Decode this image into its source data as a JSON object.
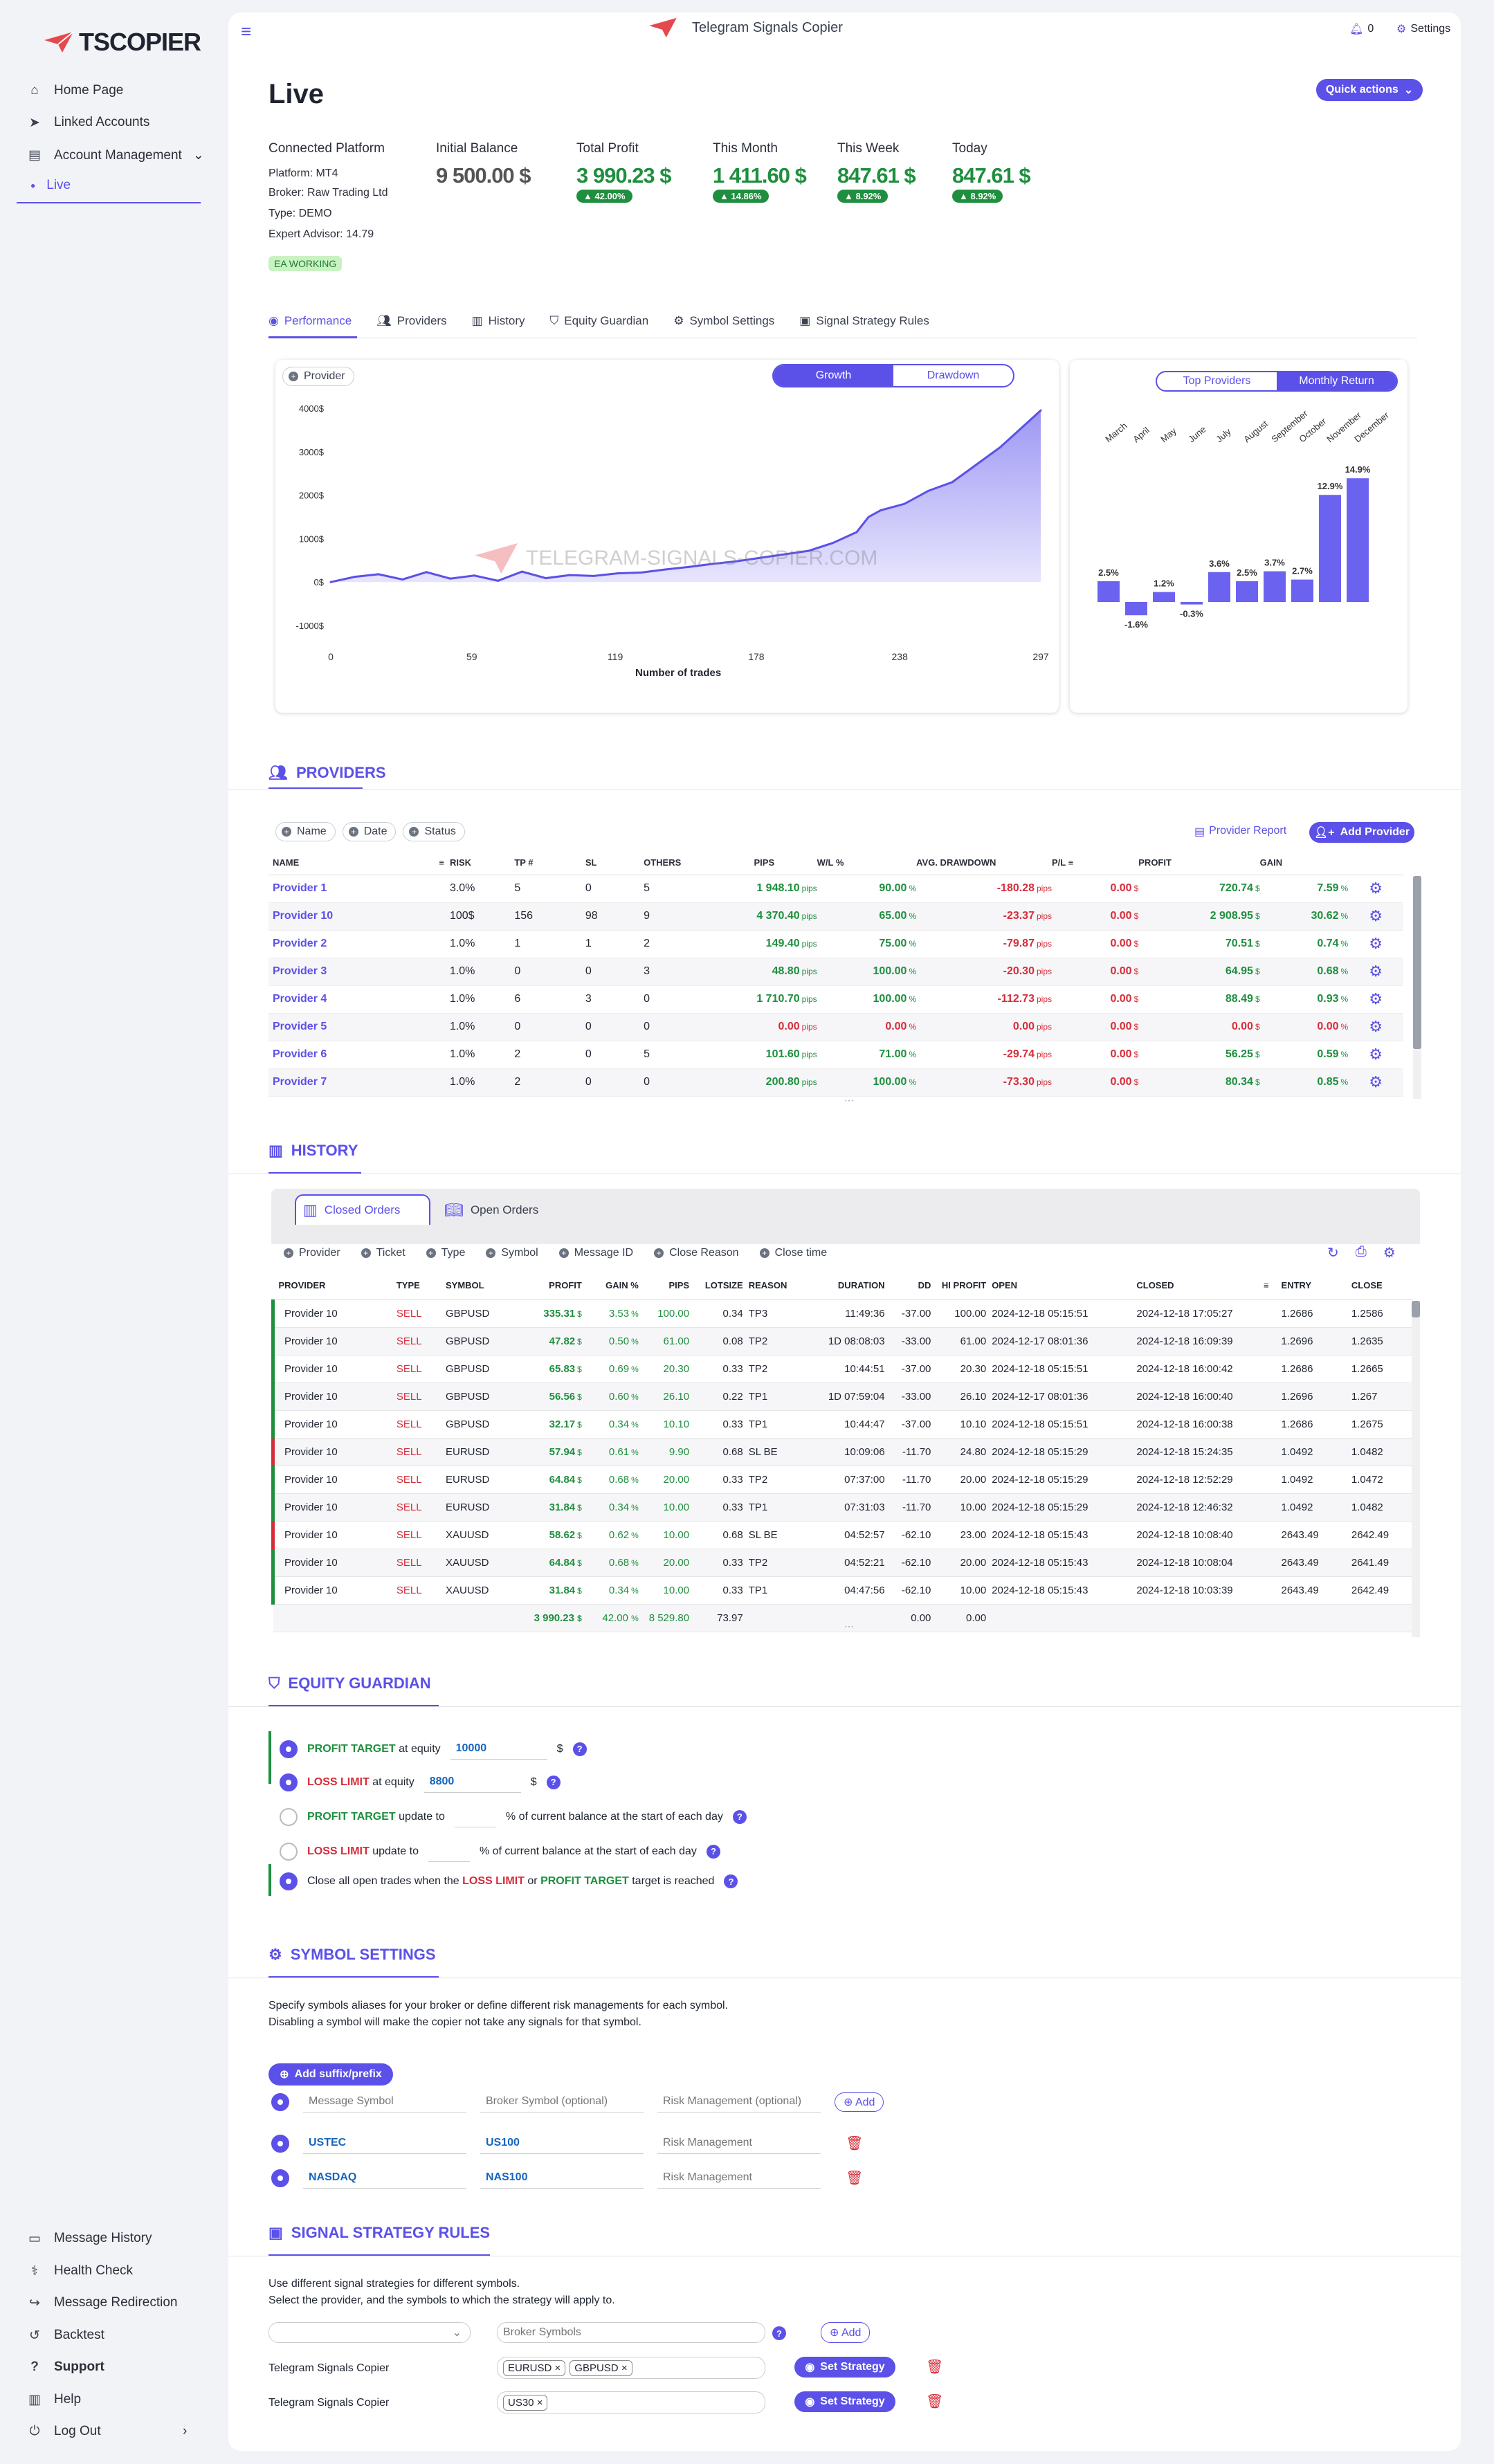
{
  "brand": {
    "logo_text": "TSCOPIER"
  },
  "sidebar": {
    "items": [
      {
        "label": "Home Page"
      },
      {
        "label": "Linked Accounts"
      },
      {
        "label": "Account Management"
      },
      {
        "label": "Live"
      }
    ],
    "bottom": [
      {
        "label": "Message History"
      },
      {
        "label": "Health Check"
      },
      {
        "label": "Message Redirection"
      },
      {
        "label": "Backtest"
      },
      {
        "label": "Support"
      },
      {
        "label": "Help"
      },
      {
        "label": "Log Out"
      }
    ]
  },
  "header": {
    "app_title": "Telegram Signals Copier",
    "notif_count": "0",
    "settings": "Settings"
  },
  "page": {
    "title": "Live",
    "quick_actions": "Quick actions"
  },
  "account": {
    "connected_label": "Connected Platform",
    "platform": "Platform:  MT4",
    "broker": "Broker:  Raw Trading Ltd",
    "type": "Type:  DEMO",
    "ea": "Expert Advisor:  14.79",
    "ea_status": "EA WORKING"
  },
  "stats": [
    {
      "label": "Initial Balance",
      "value": "9 500.00 $",
      "pct": ""
    },
    {
      "label": "Total Profit",
      "value": "3 990.23 $",
      "pct": "42.00%"
    },
    {
      "label": "This Month",
      "value": "1 411.60 $",
      "pct": "14.86%"
    },
    {
      "label": "This Week",
      "value": "847.61 $",
      "pct": "8.92%"
    },
    {
      "label": "Today",
      "value": "847.61 $",
      "pct": "8.92%"
    }
  ],
  "tabs": [
    "Performance",
    "Providers",
    "History",
    "Equity Guardian",
    "Symbol Settings",
    "Signal Strategy Rules"
  ],
  "growth_chart": {
    "provider_chip": "Provider",
    "toggle_growth": "Growth",
    "toggle_drawdown": "Drawdown",
    "watermark": "TELEGRAM-SIGNALS-COPIER.COM",
    "xlabel": "Number of trades",
    "yticks": [
      "4000$",
      "3000$",
      "2000$",
      "1000$",
      "0$",
      "-1000$"
    ],
    "xticks": [
      "0",
      "59",
      "119",
      "178",
      "238",
      "297"
    ]
  },
  "chart_data": [
    {
      "type": "area",
      "title": "",
      "xlabel": "Number of trades",
      "ylabel": "",
      "ylim": [
        -1000,
        4000
      ],
      "xlim": [
        0,
        297
      ],
      "x": [
        0,
        10,
        20,
        30,
        40,
        50,
        60,
        70,
        80,
        90,
        100,
        110,
        120,
        130,
        140,
        150,
        160,
        170,
        180,
        190,
        200,
        210,
        220,
        225,
        230,
        240,
        250,
        260,
        270,
        280,
        290,
        297
      ],
      "y": [
        0,
        120,
        180,
        60,
        230,
        80,
        150,
        30,
        240,
        90,
        160,
        140,
        200,
        220,
        290,
        350,
        420,
        480,
        560,
        640,
        720,
        900,
        1150,
        1500,
        1650,
        1800,
        2100,
        2300,
        2700,
        3100,
        3600,
        3950
      ]
    },
    {
      "type": "bar",
      "title": "",
      "toggle_top": "Top Providers",
      "toggle_monthly": "Monthly Return",
      "categories": [
        "March",
        "April",
        "May",
        "June",
        "July",
        "August",
        "September",
        "October",
        "November",
        "December"
      ],
      "values": [
        2.5,
        -1.6,
        1.2,
        -0.3,
        3.6,
        2.5,
        3.7,
        2.7,
        12.9,
        14.9
      ],
      "labels": [
        "2.5%",
        "-1.6%",
        "1.2%",
        "-0.3%",
        "3.6%",
        "2.5%",
        "3.7%",
        "2.7%",
        "12.9%",
        "14.9%"
      ]
    }
  ],
  "providers": {
    "title": "PROVIDERS",
    "filters": [
      "Name",
      "Date",
      "Status"
    ],
    "report": "Provider Report",
    "add": "Add Provider",
    "columns": [
      "NAME",
      "RISK",
      "TP #",
      "SL",
      "OTHERS",
      "PIPS",
      "W/L %",
      "AVG. DRAWDOWN",
      "P/L",
      "PROFIT",
      "GAIN"
    ],
    "rows": [
      [
        "Provider 1",
        "3.0%",
        "5",
        "0",
        "5",
        "1 948.10",
        "90.00",
        "-180.28",
        "0.00",
        "720.74",
        "7.59"
      ],
      [
        "Provider 10",
        "100$",
        "156",
        "98",
        "9",
        "4 370.40",
        "65.00",
        "-23.37",
        "0.00",
        "2 908.95",
        "30.62"
      ],
      [
        "Provider 2",
        "1.0%",
        "1",
        "1",
        "2",
        "149.40",
        "75.00",
        "-79.87",
        "0.00",
        "70.51",
        "0.74"
      ],
      [
        "Provider 3",
        "1.0%",
        "0",
        "0",
        "3",
        "48.80",
        "100.00",
        "-20.30",
        "0.00",
        "64.95",
        "0.68"
      ],
      [
        "Provider 4",
        "1.0%",
        "6",
        "3",
        "0",
        "1 710.70",
        "100.00",
        "-112.73",
        "0.00",
        "88.49",
        "0.93"
      ],
      [
        "Provider 5",
        "1.0%",
        "0",
        "0",
        "0",
        "0.00",
        "0.00",
        "0.00",
        "0.00",
        "0.00",
        "0.00"
      ],
      [
        "Provider 6",
        "1.0%",
        "2",
        "0",
        "5",
        "101.60",
        "71.00",
        "-29.74",
        "0.00",
        "56.25",
        "0.59"
      ],
      [
        "Provider 7",
        "1.0%",
        "2",
        "0",
        "0",
        "200.80",
        "100.00",
        "-73.30",
        "0.00",
        "80.34",
        "0.85"
      ]
    ]
  },
  "history": {
    "title": "HISTORY",
    "tab_closed": "Closed Orders",
    "tab_open": "Open Orders",
    "filters": [
      "Provider",
      "Ticket",
      "Type",
      "Symbol",
      "Message ID",
      "Close Reason",
      "Close time"
    ],
    "columns": [
      "PROVIDER",
      "TYPE",
      "SYMBOL",
      "PROFIT",
      "GAIN %",
      "PIPS",
      "LOTSIZE",
      "REASON",
      "DURATION",
      "DD",
      "HI PROFIT",
      "OPEN",
      "CLOSED",
      "ENTRY",
      "CLOSE"
    ],
    "rows": [
      [
        "Provider 10",
        "SELL",
        "GBPUSD",
        "335.31",
        "3.53",
        "100.00",
        "0.34",
        "TP3",
        "11:49:36",
        "-37.00",
        "100.00",
        "2024-12-18 05:15:51",
        "2024-12-18 17:05:27",
        "1.2686",
        "1.2586",
        "g"
      ],
      [
        "Provider 10",
        "SELL",
        "GBPUSD",
        "47.82",
        "0.50",
        "61.00",
        "0.08",
        "TP2",
        "1D 08:08:03",
        "-33.00",
        "61.00",
        "2024-12-17 08:01:36",
        "2024-12-18 16:09:39",
        "1.2696",
        "1.2635",
        "g"
      ],
      [
        "Provider 10",
        "SELL",
        "GBPUSD",
        "65.83",
        "0.69",
        "20.30",
        "0.33",
        "TP2",
        "10:44:51",
        "-37.00",
        "20.30",
        "2024-12-18 05:15:51",
        "2024-12-18 16:00:42",
        "1.2686",
        "1.2665",
        "g"
      ],
      [
        "Provider 10",
        "SELL",
        "GBPUSD",
        "56.56",
        "0.60",
        "26.10",
        "0.22",
        "TP1",
        "1D 07:59:04",
        "-33.00",
        "26.10",
        "2024-12-17 08:01:36",
        "2024-12-18 16:00:40",
        "1.2696",
        "1.267",
        "g"
      ],
      [
        "Provider 10",
        "SELL",
        "GBPUSD",
        "32.17",
        "0.34",
        "10.10",
        "0.33",
        "TP1",
        "10:44:47",
        "-37.00",
        "10.10",
        "2024-12-18 05:15:51",
        "2024-12-18 16:00:38",
        "1.2686",
        "1.2675",
        "g"
      ],
      [
        "Provider 10",
        "SELL",
        "EURUSD",
        "57.94",
        "0.61",
        "9.90",
        "0.68",
        "SL BE",
        "10:09:06",
        "-11.70",
        "24.80",
        "2024-12-18 05:15:29",
        "2024-12-18 15:24:35",
        "1.0492",
        "1.0482",
        "r"
      ],
      [
        "Provider 10",
        "SELL",
        "EURUSD",
        "64.84",
        "0.68",
        "20.00",
        "0.33",
        "TP2",
        "07:37:00",
        "-11.70",
        "20.00",
        "2024-12-18 05:15:29",
        "2024-12-18 12:52:29",
        "1.0492",
        "1.0472",
        "g"
      ],
      [
        "Provider 10",
        "SELL",
        "EURUSD",
        "31.84",
        "0.34",
        "10.00",
        "0.33",
        "TP1",
        "07:31:03",
        "-11.70",
        "10.00",
        "2024-12-18 05:15:29",
        "2024-12-18 12:46:32",
        "1.0492",
        "1.0482",
        "g"
      ],
      [
        "Provider 10",
        "SELL",
        "XAUUSD",
        "58.62",
        "0.62",
        "10.00",
        "0.68",
        "SL BE",
        "04:52:57",
        "-62.10",
        "23.00",
        "2024-12-18 05:15:43",
        "2024-12-18 10:08:40",
        "2643.49",
        "2642.49",
        "r"
      ],
      [
        "Provider 10",
        "SELL",
        "XAUUSD",
        "64.84",
        "0.68",
        "20.00",
        "0.33",
        "TP2",
        "04:52:21",
        "-62.10",
        "20.00",
        "2024-12-18 05:15:43",
        "2024-12-18 10:08:04",
        "2643.49",
        "2641.49",
        "g"
      ],
      [
        "Provider 10",
        "SELL",
        "XAUUSD",
        "31.84",
        "0.34",
        "10.00",
        "0.33",
        "TP1",
        "04:47:56",
        "-62.10",
        "10.00",
        "2024-12-18 05:15:43",
        "2024-12-18 10:03:39",
        "2643.49",
        "2642.49",
        "g"
      ]
    ],
    "totals": {
      "profit": "3 990.23",
      "gain": "42.00",
      "pips": "8 529.80",
      "lots": "73.97",
      "dd": "0.00",
      "hi": "0.00"
    }
  },
  "equity": {
    "title": "EQUITY GUARDIAN",
    "profit_target": "PROFIT TARGET",
    "at_equity": "at equity",
    "profit_value": "10000",
    "loss_limit": "LOSS LIMIT",
    "loss_value": "8800",
    "currency": "$",
    "update_to": "update to",
    "pct_text": "% of current balance at the start of each day",
    "close_pre": "Close all open trades when the",
    "or": "or",
    "close_post": "target is reached"
  },
  "symbols": {
    "title": "SYMBOL SETTINGS",
    "desc1": "Specify symbols aliases for your broker or define different risk managements for each symbol.",
    "desc2": "Disabling a symbol will make the copier not take any signals for that symbol.",
    "add_suffix": "Add suffix/prefix",
    "ph_message": "Message Symbol",
    "ph_broker": "Broker Symbol (optional)",
    "ph_risk": "Risk Management (optional)",
    "add": "Add",
    "ph_risk2": "Risk Management",
    "rows": [
      {
        "msg": "USTEC",
        "broker": "US100"
      },
      {
        "msg": "NASDAQ",
        "broker": "NAS100"
      }
    ]
  },
  "strategy": {
    "title": "SIGNAL STRATEGY RULES",
    "desc1": "Use different signal strategies for different symbols.",
    "desc2": "Select the provider, and the symbols to which the strategy will apply to.",
    "ph_broker": "Broker Symbols",
    "add": "Add",
    "set": "Set Strategy",
    "rows": [
      {
        "provider": "Telegram Signals Copier",
        "tags": [
          "EURUSD",
          "GBPUSD"
        ]
      },
      {
        "provider": "Telegram Signals Copier",
        "tags": [
          "US30"
        ]
      }
    ]
  },
  "colors": {
    "accent": "#5b50e8",
    "green": "#1e8f3e",
    "red": "#d62c3a"
  }
}
